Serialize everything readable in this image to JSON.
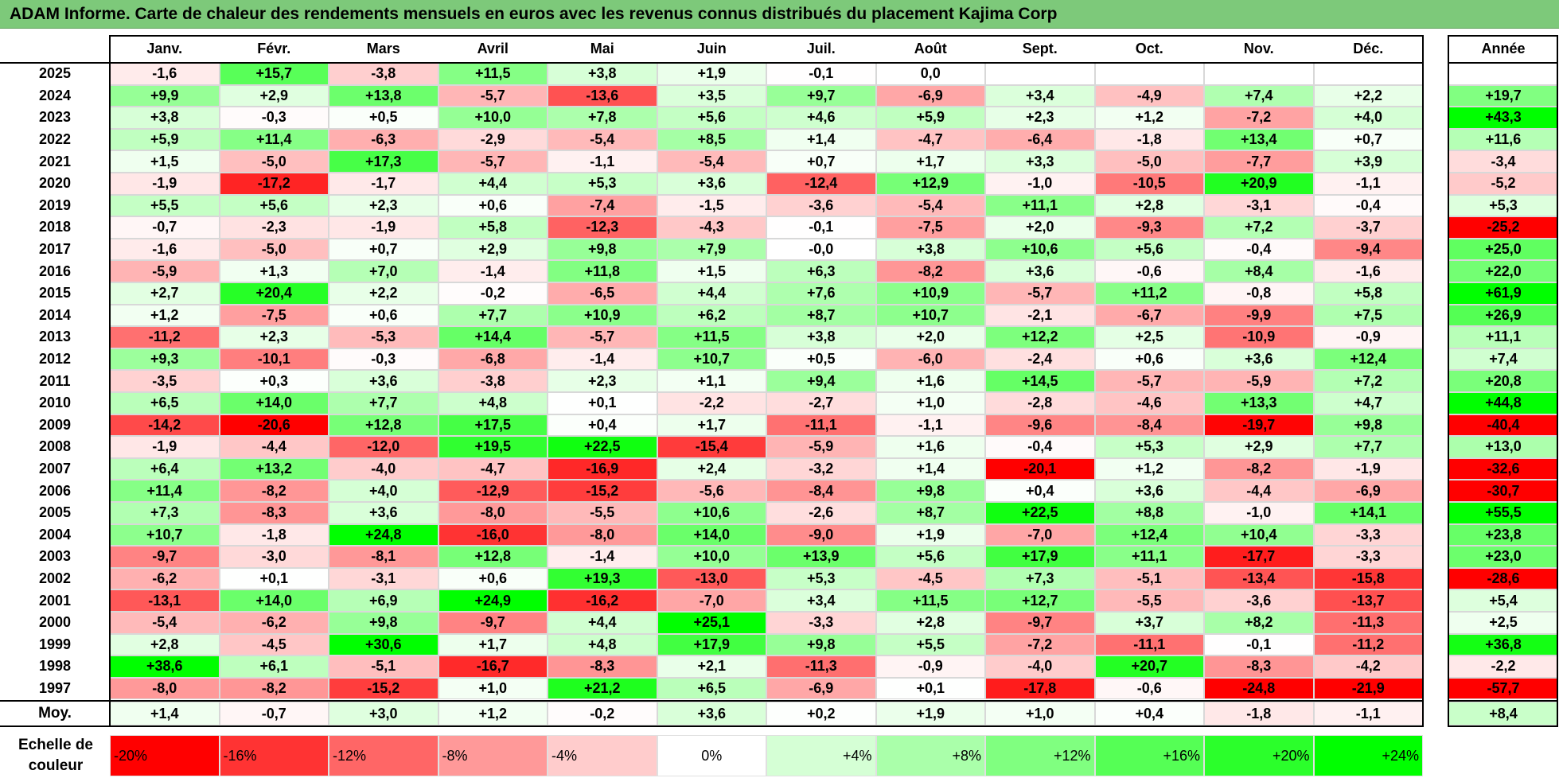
{
  "title": "ADAM Informe. Carte de chaleur des rendements mensuels en euros avec les revenus connus distribués du placement Kajima Corp",
  "chart_data": {
    "type": "heatmap",
    "title": "ADAM Informe. Carte de chaleur des rendements mensuels en euros avec les revenus connus distribués du placement Kajima Corp",
    "months": [
      "Janv.",
      "Févr.",
      "Mars",
      "Avril",
      "Mai",
      "Juin",
      "Juil.",
      "Août",
      "Sept.",
      "Oct.",
      "Nov.",
      "Déc."
    ],
    "year_header": "Année",
    "rows": [
      {
        "year": "2025",
        "months": [
          "-1,6",
          "+15,7",
          "-3,8",
          "+11,5",
          "+3,8",
          "+1,9",
          "-0,1",
          "0,0",
          "",
          "",
          "",
          ""
        ],
        "annual": ""
      },
      {
        "year": "2024",
        "months": [
          "+9,9",
          "+2,9",
          "+13,8",
          "-5,7",
          "-13,6",
          "+3,5",
          "+9,7",
          "-6,9",
          "+3,4",
          "-4,9",
          "+7,4",
          "+2,2"
        ],
        "annual": "+19,7"
      },
      {
        "year": "2023",
        "months": [
          "+3,8",
          "-0,3",
          "+0,5",
          "+10,0",
          "+7,8",
          "+5,6",
          "+4,6",
          "+5,9",
          "+2,3",
          "+1,2",
          "-7,2",
          "+4,0"
        ],
        "annual": "+43,3"
      },
      {
        "year": "2022",
        "months": [
          "+5,9",
          "+11,4",
          "-6,3",
          "-2,9",
          "-5,4",
          "+8,5",
          "+1,4",
          "-4,7",
          "-6,4",
          "-1,8",
          "+13,4",
          "+0,7"
        ],
        "annual": "+11,6"
      },
      {
        "year": "2021",
        "months": [
          "+1,5",
          "-5,0",
          "+17,3",
          "-5,7",
          "-1,1",
          "-5,4",
          "+0,7",
          "+1,7",
          "+3,3",
          "-5,0",
          "-7,7",
          "+3,9"
        ],
        "annual": "-3,4"
      },
      {
        "year": "2020",
        "months": [
          "-1,9",
          "-17,2",
          "-1,7",
          "+4,4",
          "+5,3",
          "+3,6",
          "-12,4",
          "+12,9",
          "-1,0",
          "-10,5",
          "+20,9",
          "-1,1"
        ],
        "annual": "-5,2"
      },
      {
        "year": "2019",
        "months": [
          "+5,5",
          "+5,6",
          "+2,3",
          "+0,6",
          "-7,4",
          "-1,5",
          "-3,6",
          "-5,4",
          "+11,1",
          "+2,8",
          "-3,1",
          "-0,4"
        ],
        "annual": "+5,3"
      },
      {
        "year": "2018",
        "months": [
          "-0,7",
          "-2,3",
          "-1,9",
          "+5,8",
          "-12,3",
          "-4,3",
          "-0,1",
          "-7,5",
          "+2,0",
          "-9,3",
          "+7,2",
          "-3,7"
        ],
        "annual": "-25,2"
      },
      {
        "year": "2017",
        "months": [
          "-1,6",
          "-5,0",
          "+0,7",
          "+2,9",
          "+9,8",
          "+7,9",
          "-0,0",
          "+3,8",
          "+10,6",
          "+5,6",
          "-0,4",
          "-9,4"
        ],
        "annual": "+25,0"
      },
      {
        "year": "2016",
        "months": [
          "-5,9",
          "+1,3",
          "+7,0",
          "-1,4",
          "+11,8",
          "+1,5",
          "+6,3",
          "-8,2",
          "+3,6",
          "-0,6",
          "+8,4",
          "-1,6"
        ],
        "annual": "+22,0"
      },
      {
        "year": "2015",
        "months": [
          "+2,7",
          "+20,4",
          "+2,2",
          "-0,2",
          "-6,5",
          "+4,4",
          "+7,6",
          "+10,9",
          "-5,7",
          "+11,2",
          "-0,8",
          "+5,8"
        ],
        "annual": "+61,9"
      },
      {
        "year": "2014",
        "months": [
          "+1,2",
          "-7,5",
          "+0,6",
          "+7,7",
          "+10,9",
          "+6,2",
          "+8,7",
          "+10,7",
          "-2,1",
          "-6,7",
          "-9,9",
          "+7,5"
        ],
        "annual": "+26,9"
      },
      {
        "year": "2013",
        "months": [
          "-11,2",
          "+2,3",
          "-5,3",
          "+14,4",
          "-5,7",
          "+11,5",
          "+3,8",
          "+2,0",
          "+12,2",
          "+2,5",
          "-10,9",
          "-0,9"
        ],
        "annual": "+11,1"
      },
      {
        "year": "2012",
        "months": [
          "+9,3",
          "-10,1",
          "-0,3",
          "-6,8",
          "-1,4",
          "+10,7",
          "+0,5",
          "-6,0",
          "-2,4",
          "+0,6",
          "+3,6",
          "+12,4"
        ],
        "annual": "+7,4"
      },
      {
        "year": "2011",
        "months": [
          "-3,5",
          "+0,3",
          "+3,6",
          "-3,8",
          "+2,3",
          "+1,1",
          "+9,4",
          "+1,6",
          "+14,5",
          "-5,7",
          "-5,9",
          "+7,2"
        ],
        "annual": "+20,8"
      },
      {
        "year": "2010",
        "months": [
          "+6,5",
          "+14,0",
          "+7,7",
          "+4,8",
          "+0,1",
          "-2,2",
          "-2,7",
          "+1,0",
          "-2,8",
          "-4,6",
          "+13,3",
          "+4,7"
        ],
        "annual": "+44,8"
      },
      {
        "year": "2009",
        "months": [
          "-14,2",
          "-20,6",
          "+12,8",
          "+17,5",
          "+0,4",
          "+1,7",
          "-11,1",
          "-1,1",
          "-9,6",
          "-8,4",
          "-19,7",
          "+9,8"
        ],
        "annual": "-40,4"
      },
      {
        "year": "2008",
        "months": [
          "-1,9",
          "-4,4",
          "-12,0",
          "+19,5",
          "+22,5",
          "-15,4",
          "-5,9",
          "+1,6",
          "-0,4",
          "+5,3",
          "+2,9",
          "+7,7"
        ],
        "annual": "+13,0"
      },
      {
        "year": "2007",
        "months": [
          "+6,4",
          "+13,2",
          "-4,0",
          "-4,7",
          "-16,9",
          "+2,4",
          "-3,2",
          "+1,4",
          "-20,1",
          "+1,2",
          "-8,2",
          "-1,9"
        ],
        "annual": "-32,6"
      },
      {
        "year": "2006",
        "months": [
          "+11,4",
          "-8,2",
          "+4,0",
          "-12,9",
          "-15,2",
          "-5,6",
          "-8,4",
          "+9,8",
          "+0,4",
          "+3,6",
          "-4,4",
          "-6,9"
        ],
        "annual": "-30,7"
      },
      {
        "year": "2005",
        "months": [
          "+7,3",
          "-8,3",
          "+3,6",
          "-8,0",
          "-5,5",
          "+10,6",
          "-2,6",
          "+8,7",
          "+22,5",
          "+8,8",
          "-1,0",
          "+14,1"
        ],
        "annual": "+55,5"
      },
      {
        "year": "2004",
        "months": [
          "+10,7",
          "-1,8",
          "+24,8",
          "-16,0",
          "-8,0",
          "+14,0",
          "-9,0",
          "+1,9",
          "-7,0",
          "+12,4",
          "+10,4",
          "-3,3"
        ],
        "annual": "+23,8"
      },
      {
        "year": "2003",
        "months": [
          "-9,7",
          "-3,0",
          "-8,1",
          "+12,8",
          "-1,4",
          "+10,0",
          "+13,9",
          "+5,6",
          "+17,9",
          "+11,1",
          "-17,7",
          "-3,3"
        ],
        "annual": "+23,0"
      },
      {
        "year": "2002",
        "months": [
          "-6,2",
          "+0,1",
          "-3,1",
          "+0,6",
          "+19,3",
          "-13,0",
          "+5,3",
          "-4,5",
          "+7,3",
          "-5,1",
          "-13,4",
          "-15,8"
        ],
        "annual": "-28,6"
      },
      {
        "year": "2001",
        "months": [
          "-13,1",
          "+14,0",
          "+6,9",
          "+24,9",
          "-16,2",
          "-7,0",
          "+3,4",
          "+11,5",
          "+12,7",
          "-5,5",
          "-3,6",
          "-13,7"
        ],
        "annual": "+5,4"
      },
      {
        "year": "2000",
        "months": [
          "-5,4",
          "-6,2",
          "+9,8",
          "-9,7",
          "+4,4",
          "+25,1",
          "-3,3",
          "+2,8",
          "-9,7",
          "+3,7",
          "+8,2",
          "-11,3"
        ],
        "annual": "+2,5"
      },
      {
        "year": "1999",
        "months": [
          "+2,8",
          "-4,5",
          "+30,6",
          "+1,7",
          "+4,8",
          "+17,9",
          "+9,8",
          "+5,5",
          "-7,2",
          "-11,1",
          "-0,1",
          "-11,2"
        ],
        "annual": "+36,8"
      },
      {
        "year": "1998",
        "months": [
          "+38,6",
          "+6,1",
          "-5,1",
          "-16,7",
          "-8,3",
          "+2,1",
          "-11,3",
          "-0,9",
          "-4,0",
          "+20,7",
          "-8,3",
          "-4,2"
        ],
        "annual": "-2,2"
      },
      {
        "year": "1997",
        "months": [
          "-8,0",
          "-8,2",
          "-15,2",
          "+1,0",
          "+21,2",
          "+6,5",
          "-6,9",
          "+0,1",
          "-17,8",
          "-0,6",
          "-24,8",
          "-21,9"
        ],
        "annual": "-57,7"
      }
    ],
    "average": {
      "label": "Moy.",
      "months": [
        "+1,4",
        "-0,7",
        "+3,0",
        "+1,2",
        "-0,2",
        "+3,6",
        "+0,2",
        "+1,9",
        "+1,0",
        "+0,4",
        "-1,8",
        "-1,1"
      ],
      "annual": "+8,4"
    },
    "color_scale": {
      "label_line1": "Echelle de",
      "label_line2": "couleur",
      "steps": [
        "-20%",
        "-16%",
        "-12%",
        "-8%",
        "-4%",
        "0%",
        "+4%",
        "+8%",
        "+12%",
        "+16%",
        "+20%",
        "+24%"
      ],
      "negative_color": "#ff0000",
      "neutral_color": "#ffffff",
      "positive_color": "#00ff00"
    }
  }
}
